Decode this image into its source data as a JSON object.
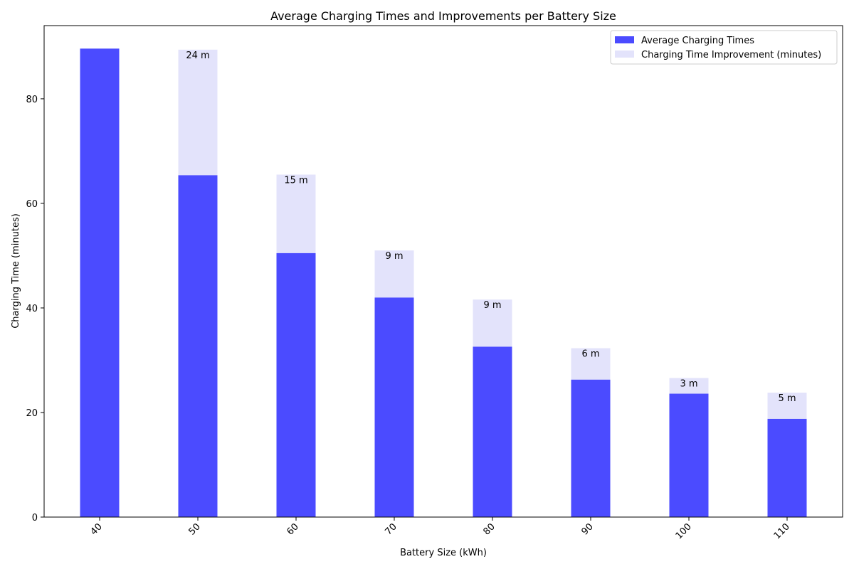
{
  "chart_data": {
    "type": "bar",
    "title": "Average Charging Times and Improvements per Battery Size",
    "xlabel": "Battery Size (kWh)",
    "ylabel": "Charging Time (minutes)",
    "categories": [
      "40",
      "50",
      "60",
      "70",
      "80",
      "90",
      "100",
      "110"
    ],
    "ylim": [
      0,
      94
    ],
    "yticks": [
      0,
      20,
      40,
      60,
      80
    ],
    "xtick_rotation_deg": 45,
    "stacked": true,
    "grid": false,
    "legend_position": "top-right",
    "series": [
      {
        "name": "Average Charging Times",
        "color": "#4b4bff",
        "values": [
          89.6,
          65.4,
          50.5,
          42.0,
          32.6,
          26.3,
          23.6,
          18.8
        ]
      },
      {
        "name": "Charging Time Improvement (minutes)",
        "color": "#e3e3fb",
        "values": [
          0,
          24.0,
          15.0,
          9.0,
          9.0,
          6.0,
          3.0,
          5.0
        ],
        "labels": [
          "",
          "24 m",
          "15 m",
          "9 m",
          "9 m",
          "6 m",
          "3 m",
          "5 m"
        ]
      }
    ]
  }
}
